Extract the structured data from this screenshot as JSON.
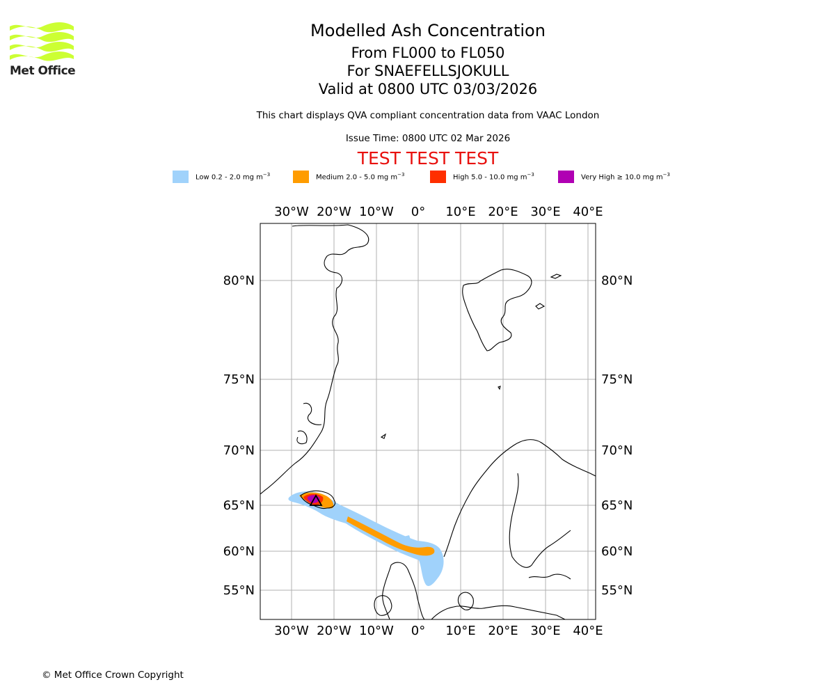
{
  "logo": {
    "text": "Met Office",
    "color": "#ccff33"
  },
  "titles": {
    "main": "Modelled Ash Concentration",
    "flight_levels": "From FL000 to FL050",
    "volcano": "For SNAEFELLSJOKULL",
    "valid": "Valid at 0800 UTC 03/03/2026",
    "qva_note": "This chart displays QVA compliant concentration data from VAAC London",
    "issue_time": "Issue Time: 0800 UTC 02 Mar 2026",
    "test_banner": "TEST TEST TEST"
  },
  "legend": [
    {
      "name": "Low",
      "range": "0.2 - 2.0 mg m",
      "unit_exp": "−3",
      "color": "#a0d2fb"
    },
    {
      "name": "Medium",
      "range": "2.0 - 5.0 mg m",
      "unit_exp": "−3",
      "color": "#ff9c00"
    },
    {
      "name": "High",
      "range": "5.0 - 10.0 mg m",
      "unit_exp": "−3",
      "color": "#ff2f00"
    },
    {
      "name": "Very High",
      "range": "≥ 10.0 mg m",
      "unit_exp": "−3",
      "color": "#b000b3"
    }
  ],
  "map": {
    "lon_ticks": [
      "30°W",
      "20°W",
      "10°W",
      "0°",
      "10°E",
      "20°E",
      "30°E",
      "40°E"
    ],
    "lat_ticks": [
      "80°N",
      "75°N",
      "70°N",
      "65°N",
      "60°N",
      "55°N"
    ],
    "volcano_marker": "triangle"
  },
  "copyright": "© Met Office Crown Copyright"
}
